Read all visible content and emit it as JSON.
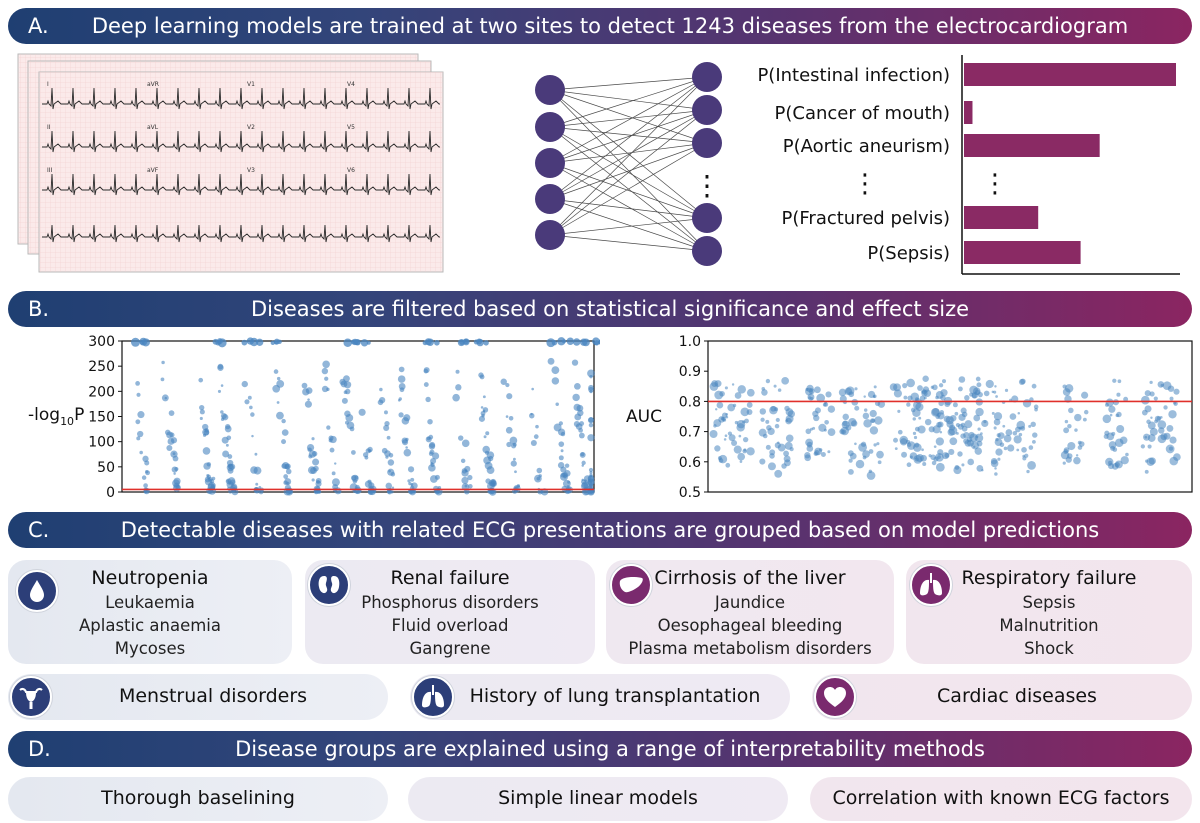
{
  "section_a": {
    "letter": "A.",
    "title": "Deep learning models are trained at two sites to detect 1243 diseases from the electrocardiogram",
    "ecg_leads": [
      "I",
      "aVR",
      "V1",
      "V4",
      "II",
      "aVL",
      "V2",
      "V5",
      "III",
      "aVF",
      "V3",
      "V6"
    ],
    "outputs": [
      {
        "label": "P(Intestinal infection)",
        "value": 1.0
      },
      {
        "label": "P(Cancer of mouth)",
        "value": 0.04
      },
      {
        "label": "P(Aortic aneurism)",
        "value": 0.64
      },
      {
        "label": "P(Fractured pelvis)",
        "value": 0.35
      },
      {
        "label": "P(Sepsis)",
        "value": 0.55
      }
    ],
    "ellipsis": "⋮"
  },
  "section_b": {
    "letter": "B.",
    "title": "Diseases are filtered based on statistical significance and effect size"
  },
  "chart_data": [
    {
      "type": "scatter",
      "ylabel_main": "-log",
      "ylabel_sub": "10",
      "ylabel_tail": "P",
      "ylim": [
        0,
        300
      ],
      "yticks": [
        "0",
        "50",
        "100",
        "150",
        "200",
        "250",
        "300"
      ],
      "threshold": 5,
      "threshold_color": "#e0302b",
      "point_color": "#4a86c0",
      "grid": false
    },
    {
      "type": "scatter",
      "ylabel": "AUC",
      "ylim": [
        0.5,
        1.0
      ],
      "yticks": [
        "0.5",
        "0.6",
        "0.7",
        "0.8",
        "0.9",
        "1.0"
      ],
      "threshold": 0.8,
      "threshold_color": "#e0302b",
      "point_color": "#4a86c0",
      "grid": false
    }
  ],
  "section_c": {
    "letter": "C.",
    "title": "Detectable diseases with related ECG presentations are grouped based on model predictions",
    "groups": [
      {
        "title": "Neutropenia",
        "items": [
          "Leukaemia",
          "Aplastic anaemia",
          "Mycoses"
        ],
        "icon": "drop-icon"
      },
      {
        "title": "Renal failure",
        "items": [
          "Phosphorus disorders",
          "Fluid overload",
          "Gangrene"
        ],
        "icon": "kidney-icon"
      },
      {
        "title": "Cirrhosis of the liver",
        "items": [
          "Jaundice",
          "Oesophageal bleeding",
          "Plasma metabolism disorders"
        ],
        "icon": "liver-icon"
      },
      {
        "title": "Respiratory failure",
        "items": [
          "Sepsis",
          "Malnutrition",
          "Shock"
        ],
        "icon": "lungs-icon"
      }
    ],
    "extra_groups": [
      {
        "title": "Menstrual disorders",
        "icon": "uterus-icon"
      },
      {
        "title": "History of lung transplantation",
        "icon": "lungs-icon"
      },
      {
        "title": "Cardiac diseases",
        "icon": "heart-icon"
      }
    ]
  },
  "section_d": {
    "letter": "D.",
    "title": "Disease groups are explained using a range of interpretability methods",
    "methods": [
      "Thorough baselining",
      "Simple linear models",
      "Correlation with known ECG factors"
    ]
  },
  "colors": {
    "banner_start": "#1f3f72",
    "banner_end": "#8b2561",
    "node": "#4a3a7a",
    "bar": "#8a2a64",
    "badge_blue": "#2c3e78",
    "badge_purple": "#7a2a6e"
  }
}
